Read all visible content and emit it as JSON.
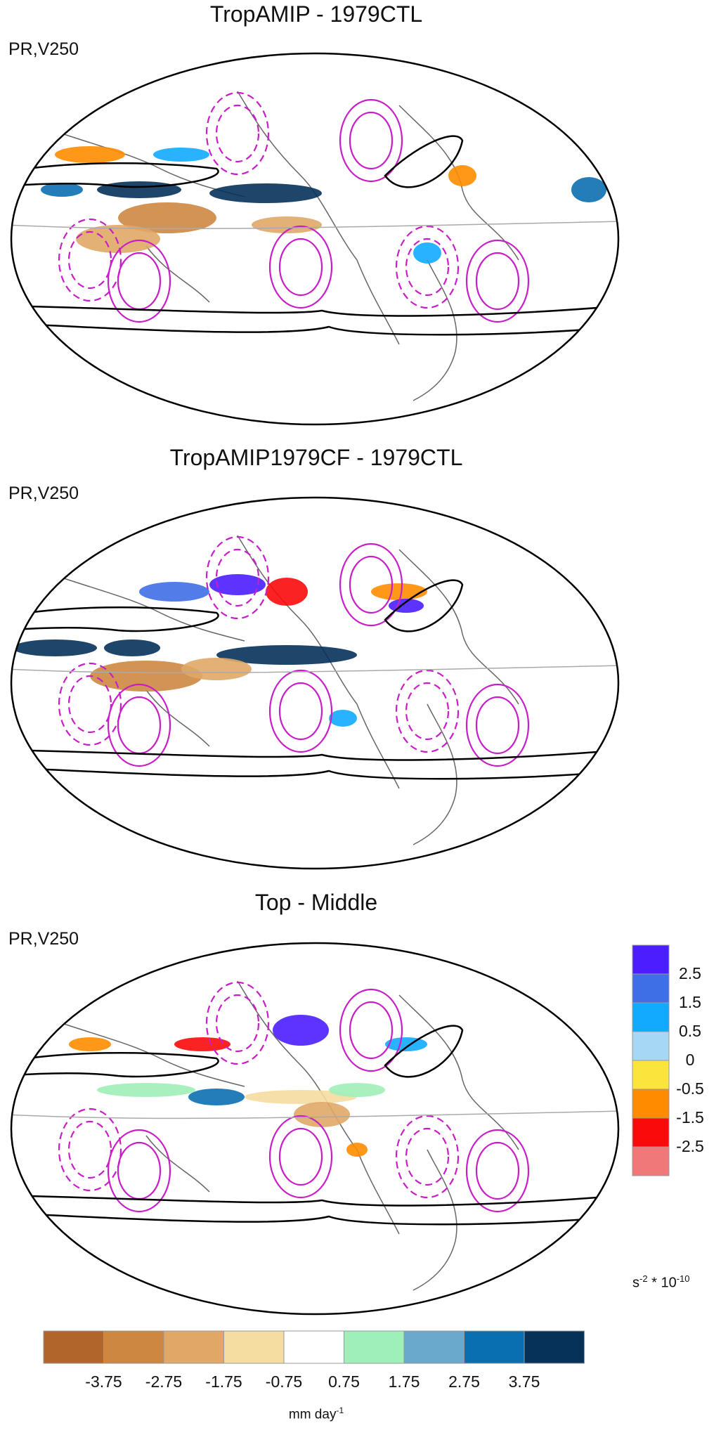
{
  "panels": [
    {
      "title": "TropAMIP - 1979CTL",
      "subtitle": "PR,V250"
    },
    {
      "title": "TropAMIP1979CF - 1979CTL",
      "subtitle": "PR,V250"
    },
    {
      "title": "Top - Middle",
      "subtitle": "PR,V250"
    }
  ],
  "vorticity_colorbar": {
    "labels": [
      "2.5",
      "1.5",
      "0.5",
      "0",
      "-0.5",
      "-1.5",
      "-2.5"
    ],
    "colors": [
      "#4b1eff",
      "#3f6fe6",
      "#12aaff",
      "#a6d8f5",
      "#fbe43c",
      "#ff8c00",
      "#fa0a0a",
      "#f07878"
    ],
    "unit_base": "s",
    "unit_exp": "-2",
    "unit_mult": " * 10",
    "unit_mult_exp": "-10"
  },
  "precip_colorbar": {
    "labels": [
      "-3.75",
      "-2.75",
      "-1.75",
      "-0.75",
      "0.75",
      "1.75",
      "2.75",
      "3.75"
    ],
    "colors": [
      "#b2652a",
      "#cd8741",
      "#e0a766",
      "#f5dca0",
      "#ffffff",
      "#9ff0b8",
      "#6aa8cc",
      "#0a6fb0",
      "#06325a"
    ],
    "unit_base": "mm day",
    "unit_exp": "-1"
  },
  "legend_colors": {
    "contour": "#c81ec8",
    "jet": "#000000",
    "coast": "#666666",
    "border": "#aaaaaa"
  }
}
